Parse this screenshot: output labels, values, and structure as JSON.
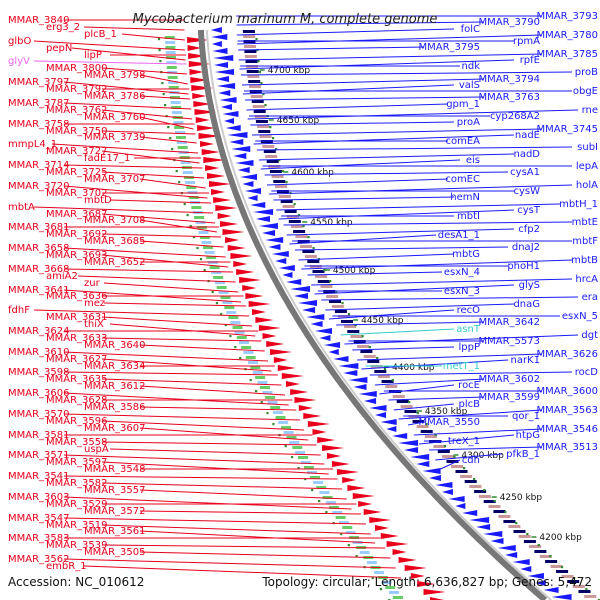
{
  "title": "Mycobacterium marinum M, complete genome",
  "accession": "Accession: NC_010612",
  "topology": "Topology: circular; Length: 6,636,827 bp; Genes: 5,472",
  "colors": {
    "forward": "#e8001c",
    "reverse": "#1a1aff",
    "rna": "#33cccc",
    "pseudo": "#ee66ee",
    "backbone": "#777777",
    "tick": "#2e8b2e"
  },
  "ticks": [
    "4700 kbp",
    "4650 kbp",
    "4600 kbp",
    "4550 kbp",
    "4500 kbp",
    "4450 kbp",
    "4400 kbp",
    "4350 kbp",
    "4300 kbp",
    "4250 kbp",
    "4200 kbp"
  ],
  "labels_left": [
    {
      "text": "MMAR_3840",
      "color": "forward"
    },
    {
      "text": "erg3_2",
      "color": "forward"
    },
    {
      "text": "plcB_1",
      "color": "forward"
    },
    {
      "text": "glbO",
      "color": "forward"
    },
    {
      "text": "pepN",
      "color": "forward"
    },
    {
      "text": "lipP",
      "color": "forward"
    },
    {
      "text": "glyV",
      "color": "pseudo"
    },
    {
      "text": "MMAR_3800",
      "color": "forward"
    },
    {
      "text": "MMAR_3798",
      "color": "forward"
    },
    {
      "text": "MMAR_3797",
      "color": "forward"
    },
    {
      "text": "MMAR_3792",
      "color": "forward"
    },
    {
      "text": "MMAR_3786",
      "color": "forward"
    },
    {
      "text": "MMAR_3787",
      "color": "forward"
    },
    {
      "text": "MMAR_3762",
      "color": "forward"
    },
    {
      "text": "MMAR_3760",
      "color": "forward"
    },
    {
      "text": "MMAR_3758",
      "color": "forward"
    },
    {
      "text": "MMAR_3750",
      "color": "forward"
    },
    {
      "text": "MMAR_3739",
      "color": "forward"
    },
    {
      "text": "mmpL4_1",
      "color": "forward"
    },
    {
      "text": "MMAR_3727",
      "color": "forward"
    },
    {
      "text": "fadE17_1",
      "color": "forward"
    },
    {
      "text": "MMAR_3714",
      "color": "forward"
    },
    {
      "text": "MMAR_3725",
      "color": "forward"
    },
    {
      "text": "MMAR_3707",
      "color": "forward"
    },
    {
      "text": "MMAR_3720",
      "color": "forward"
    },
    {
      "text": "MMAR_3702",
      "color": "forward"
    },
    {
      "text": "mbtD",
      "color": "forward"
    },
    {
      "text": "mbtA",
      "color": "forward"
    },
    {
      "text": "MMAR_3687",
      "color": "forward"
    },
    {
      "text": "MMAR_3708",
      "color": "forward"
    },
    {
      "text": "MMAR_3681",
      "color": "forward"
    },
    {
      "text": "MMAR_3692",
      "color": "forward"
    },
    {
      "text": "MMAR_3685",
      "color": "forward"
    },
    {
      "text": "MMAR_3658",
      "color": "forward"
    },
    {
      "text": "MMAR_3693",
      "color": "forward"
    },
    {
      "text": "MMAR_3652",
      "color": "forward"
    },
    {
      "text": "MMAR_3668",
      "color": "forward"
    },
    {
      "text": "amiA2",
      "color": "forward"
    },
    {
      "text": "zur",
      "color": "forward"
    },
    {
      "text": "MMAR_3641",
      "color": "forward"
    },
    {
      "text": "MMAR_3636",
      "color": "forward"
    },
    {
      "text": "mez",
      "color": "forward"
    },
    {
      "text": "fdhF",
      "color": "forward"
    },
    {
      "text": "MMAR_3631",
      "color": "forward"
    },
    {
      "text": "thiX",
      "color": "forward"
    },
    {
      "text": "MMAR_3624",
      "color": "forward"
    },
    {
      "text": "MMAR_3633",
      "color": "forward"
    },
    {
      "text": "MMAR_3640",
      "color": "forward"
    },
    {
      "text": "MMAR_3610",
      "color": "forward"
    },
    {
      "text": "MMAR_3627",
      "color": "forward"
    },
    {
      "text": "MMAR_3634",
      "color": "forward"
    },
    {
      "text": "MMAR_3598",
      "color": "forward"
    },
    {
      "text": "MMAR_3635",
      "color": "forward"
    },
    {
      "text": "MMAR_3612",
      "color": "forward"
    },
    {
      "text": "MMAR_3606",
      "color": "forward"
    },
    {
      "text": "MMAR_3628",
      "color": "forward"
    },
    {
      "text": "MMAR_3586",
      "color": "forward"
    },
    {
      "text": "MMAR_3570",
      "color": "forward"
    },
    {
      "text": "MMAR_3596",
      "color": "forward"
    },
    {
      "text": "MMAR_3607",
      "color": "forward"
    },
    {
      "text": "MMAR_3581",
      "color": "forward"
    },
    {
      "text": "MMAR_3558",
      "color": "forward"
    },
    {
      "text": "uspA",
      "color": "forward"
    },
    {
      "text": "MMAR_3571",
      "color": "forward"
    },
    {
      "text": "MMAR_3597",
      "color": "forward"
    },
    {
      "text": "MMAR_3548",
      "color": "forward"
    },
    {
      "text": "MMAR_3541",
      "color": "forward"
    },
    {
      "text": "MMAR_3582",
      "color": "forward"
    },
    {
      "text": "MMAR_3557",
      "color": "forward"
    },
    {
      "text": "MMAR_3603",
      "color": "forward"
    },
    {
      "text": "MMAR_3529",
      "color": "forward"
    },
    {
      "text": "MMAR_3572",
      "color": "forward"
    },
    {
      "text": "MMAR_3547",
      "color": "forward"
    },
    {
      "text": "MMAR_3519",
      "color": "forward"
    },
    {
      "text": "MMAR_3561",
      "color": "forward"
    },
    {
      "text": "MMAR_3583",
      "color": "forward"
    },
    {
      "text": "MMAR_3539",
      "color": "forward"
    },
    {
      "text": "MMAR_3505",
      "color": "forward"
    },
    {
      "text": "MMAR_3562",
      "color": "forward"
    },
    {
      "text": "embR_1",
      "color": "forward"
    }
  ],
  "labels_right": [
    {
      "text": "MMAR_3793",
      "color": "reverse"
    },
    {
      "text": "MMAR_3790",
      "color": "reverse"
    },
    {
      "text": "folC",
      "color": "reverse"
    },
    {
      "text": "MMAR_3780",
      "color": "reverse"
    },
    {
      "text": "rpmA",
      "color": "reverse"
    },
    {
      "text": "MMAR_3795",
      "color": "reverse"
    },
    {
      "text": "MMAR_3785",
      "color": "reverse"
    },
    {
      "text": "rpfE",
      "color": "reverse"
    },
    {
      "text": "ndk",
      "color": "reverse"
    },
    {
      "text": "proB",
      "color": "reverse"
    },
    {
      "text": "MMAR_3794",
      "color": "reverse"
    },
    {
      "text": "valS",
      "color": "reverse"
    },
    {
      "text": "obgE",
      "color": "reverse"
    },
    {
      "text": "MMAR_3763",
      "color": "reverse"
    },
    {
      "text": "gpm_1",
      "color": "reverse"
    },
    {
      "text": "rne",
      "color": "reverse"
    },
    {
      "text": "cyp268A2",
      "color": "reverse"
    },
    {
      "text": "proA",
      "color": "reverse"
    },
    {
      "text": "MMAR_3745",
      "color": "reverse"
    },
    {
      "text": "nadE",
      "color": "reverse"
    },
    {
      "text": "comEA",
      "color": "reverse"
    },
    {
      "text": "subI",
      "color": "reverse"
    },
    {
      "text": "nadD",
      "color": "reverse"
    },
    {
      "text": "eis",
      "color": "reverse"
    },
    {
      "text": "lepA",
      "color": "reverse"
    },
    {
      "text": "cysA1",
      "color": "reverse"
    },
    {
      "text": "comEC",
      "color": "reverse"
    },
    {
      "text": "holA",
      "color": "reverse"
    },
    {
      "text": "cysW",
      "color": "reverse"
    },
    {
      "text": "hemN",
      "color": "reverse"
    },
    {
      "text": "mbtH_1",
      "color": "reverse"
    },
    {
      "text": "cysT",
      "color": "reverse"
    },
    {
      "text": "mbtI",
      "color": "reverse"
    },
    {
      "text": "mbtE",
      "color": "reverse"
    },
    {
      "text": "cfp2",
      "color": "reverse"
    },
    {
      "text": "desA1_1",
      "color": "reverse"
    },
    {
      "text": "mbtF",
      "color": "reverse"
    },
    {
      "text": "dnaJ2",
      "color": "reverse"
    },
    {
      "text": "mbtG",
      "color": "reverse"
    },
    {
      "text": "mbtB",
      "color": "reverse"
    },
    {
      "text": "phoH1",
      "color": "reverse"
    },
    {
      "text": "esxN_4",
      "color": "reverse"
    },
    {
      "text": "hrcA",
      "color": "reverse"
    },
    {
      "text": "glyS",
      "color": "reverse"
    },
    {
      "text": "esxN_3",
      "color": "reverse"
    },
    {
      "text": "era",
      "color": "reverse"
    },
    {
      "text": "dnaG",
      "color": "reverse"
    },
    {
      "text": "recO",
      "color": "reverse"
    },
    {
      "text": "esxN_5",
      "color": "reverse"
    },
    {
      "text": "MMAR_3642",
      "color": "reverse"
    },
    {
      "text": "asnT",
      "color": "rna"
    },
    {
      "text": "dgt",
      "color": "reverse"
    },
    {
      "text": "MMAR_5573",
      "color": "reverse"
    },
    {
      "text": "lppP",
      "color": "reverse"
    },
    {
      "text": "MMAR_3626",
      "color": "reverse"
    },
    {
      "text": "narK1",
      "color": "reverse"
    },
    {
      "text": "metT_1",
      "color": "rna"
    },
    {
      "text": "rocD",
      "color": "reverse"
    },
    {
      "text": "MMAR_3602",
      "color": "reverse"
    },
    {
      "text": "rocE",
      "color": "reverse"
    },
    {
      "text": "MMAR_3600",
      "color": "reverse"
    },
    {
      "text": "MMAR_3599",
      "color": "reverse"
    },
    {
      "text": "plcB",
      "color": "reverse"
    },
    {
      "text": "MMAR_3563",
      "color": "reverse"
    },
    {
      "text": "qor_1",
      "color": "reverse"
    },
    {
      "text": "MMAR_3550",
      "color": "reverse"
    },
    {
      "text": "MMAR_3546",
      "color": "reverse"
    },
    {
      "text": "htpG",
      "color": "reverse"
    },
    {
      "text": "treX_1",
      "color": "reverse"
    },
    {
      "text": "MMAR_3513",
      "color": "reverse"
    },
    {
      "text": "pfkB_1",
      "color": "reverse"
    },
    {
      "text": "cdh",
      "color": "reverse"
    }
  ]
}
